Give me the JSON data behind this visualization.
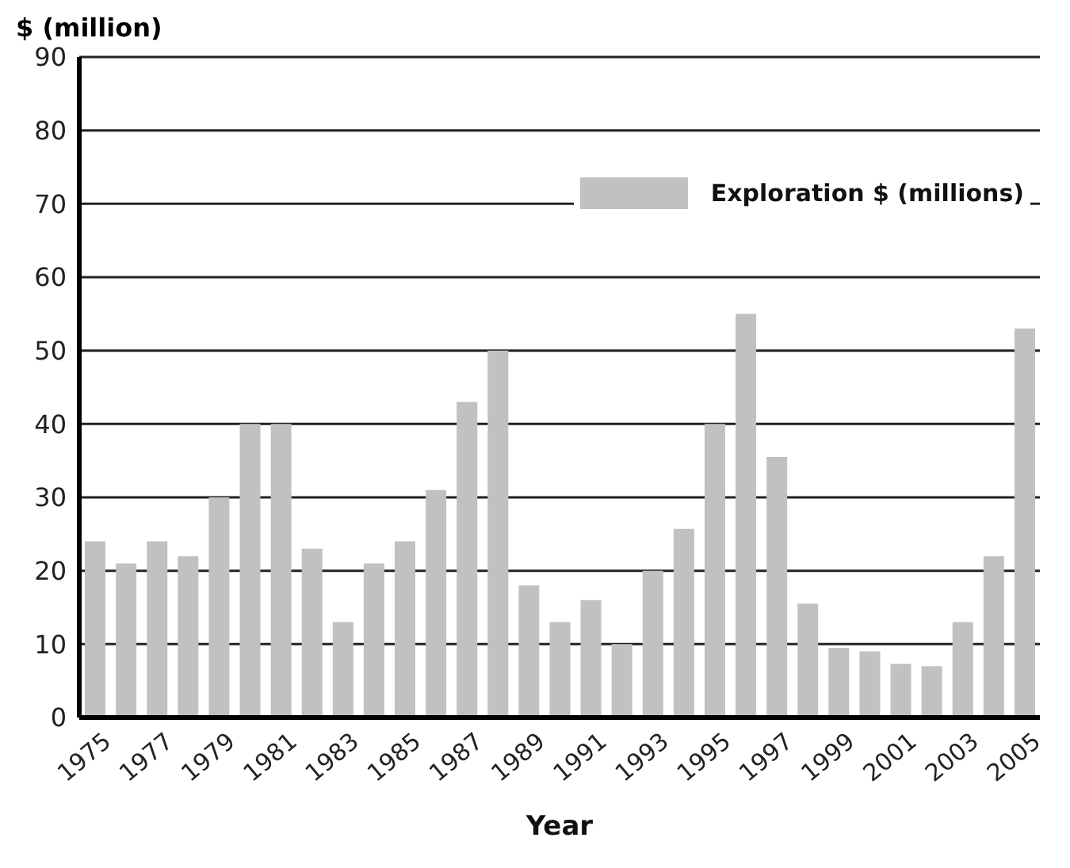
{
  "chart_data": {
    "type": "bar",
    "xlabel": "Year",
    "ylabel": "$ (million)",
    "categories": [
      "1975",
      null,
      "1977",
      null,
      "1979",
      null,
      "1981",
      null,
      "1983",
      null,
      "1985",
      null,
      "1987",
      null,
      "1989",
      null,
      "1991",
      null,
      "1993",
      null,
      "1995",
      null,
      "1997",
      null,
      "1999",
      null,
      "2001",
      null,
      "2003",
      null,
      "2005"
    ],
    "series": [
      {
        "name": "Exploration $ (millions)",
        "color": "#c0c1c3",
        "values": [
          24,
          21,
          24,
          22,
          30,
          40,
          40,
          23,
          13,
          21,
          24,
          31,
          43,
          50,
          18,
          13,
          16,
          10,
          20,
          25.7,
          40,
          55,
          35.5,
          15.5,
          9.5,
          9,
          7.3,
          7,
          13,
          22,
          53
        ]
      }
    ],
    "ylim": [
      0,
      90
    ],
    "yticks": [
      0,
      10,
      20,
      30,
      40,
      50,
      60,
      70,
      80,
      90
    ],
    "grid": "y",
    "legend": "top right"
  }
}
